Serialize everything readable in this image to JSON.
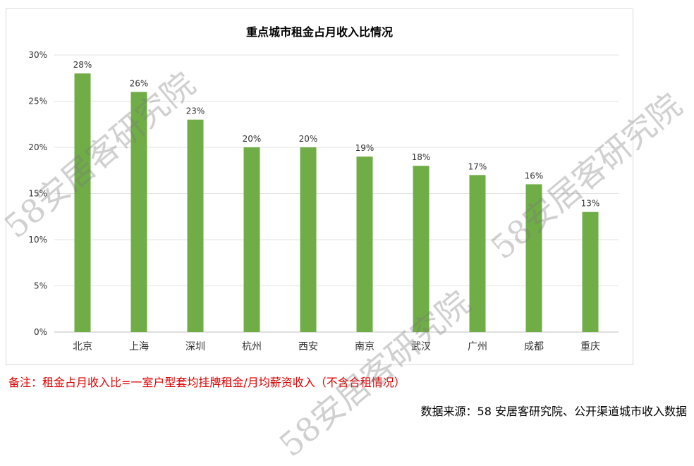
{
  "chart_data": {
    "type": "bar",
    "title": "重点城市租金占月收入比情况",
    "categories": [
      "北京",
      "上海",
      "深圳",
      "杭州",
      "西安",
      "南京",
      "武汉",
      "广州",
      "成都",
      "重庆"
    ],
    "values": [
      28,
      26,
      23,
      20,
      20,
      19,
      18,
      17,
      16,
      13
    ],
    "value_labels": [
      "28%",
      "26%",
      "23%",
      "20%",
      "20%",
      "19%",
      "18%",
      "17%",
      "16%",
      "13%"
    ],
    "ylim": [
      0,
      30
    ],
    "yticks": [
      "0%",
      "5%",
      "10%",
      "15%",
      "20%",
      "25%",
      "30%"
    ],
    "grid": true,
    "bar_color": "#70ad47"
  },
  "note": "备注：租金占月收入比=一室户型套均挂牌租金/月均薪资收入（不含合租情况）",
  "source": "数据来源：58 安居客研究院、公开渠道城市收入数据",
  "watermark": "58安居客研究院"
}
